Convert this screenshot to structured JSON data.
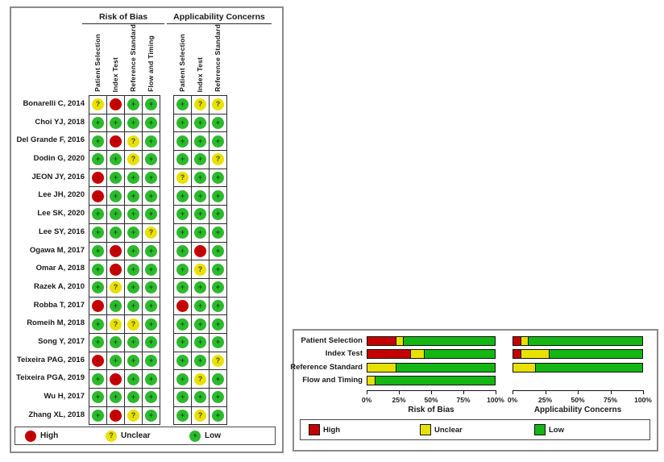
{
  "traffic_light_plot": {
    "group_headers": [
      {
        "label": "Risk of Bias"
      },
      {
        "label": "Applicability Concerns"
      }
    ],
    "rob_columns": [
      "Patient Selection",
      "Index Test",
      "Reference Standard",
      "Flow and Timing"
    ],
    "ac_columns": [
      "Patient Selection",
      "Index Test",
      "Reference Standard"
    ],
    "marks": {
      "high": {
        "label": "High",
        "symbol": "-",
        "fill": "#c40000",
        "symbol_color": "#7c0000"
      },
      "unclear": {
        "label": "Unclear",
        "symbol": "?",
        "fill": "#e8e100",
        "symbol_color": "#4d4d00"
      },
      "low": {
        "label": "Low",
        "symbol": "+",
        "fill": "#2db92d",
        "symbol_color": "#005c00"
      }
    },
    "legend": [
      {
        "key": "high",
        "label": "High"
      },
      {
        "key": "unclear",
        "label": "Unclear"
      },
      {
        "key": "low",
        "label": "Low"
      }
    ],
    "studies": [
      {
        "name": "Bonarelli C, 2014",
        "rob": [
          "unclear",
          "high",
          "low",
          "low"
        ],
        "ac": [
          "low",
          "unclear",
          "unclear"
        ]
      },
      {
        "name": "Choi YJ, 2018",
        "rob": [
          "low",
          "low",
          "low",
          "low"
        ],
        "ac": [
          "low",
          "low",
          "low"
        ]
      },
      {
        "name": "Del Grande F, 2016",
        "rob": [
          "low",
          "high",
          "unclear",
          "low"
        ],
        "ac": [
          "low",
          "low",
          "low"
        ]
      },
      {
        "name": "Dodin G, 2020",
        "rob": [
          "low",
          "low",
          "unclear",
          "low"
        ],
        "ac": [
          "low",
          "low",
          "unclear"
        ]
      },
      {
        "name": "JEON JY, 2016",
        "rob": [
          "high",
          "low",
          "low",
          "low"
        ],
        "ac": [
          "unclear",
          "low",
          "low"
        ]
      },
      {
        "name": "Lee JH, 2020",
        "rob": [
          "high",
          "low",
          "low",
          "low"
        ],
        "ac": [
          "low",
          "low",
          "low"
        ]
      },
      {
        "name": "Lee SK, 2020",
        "rob": [
          "low",
          "low",
          "low",
          "low"
        ],
        "ac": [
          "low",
          "low",
          "low"
        ]
      },
      {
        "name": "Lee SY, 2016",
        "rob": [
          "low",
          "low",
          "low",
          "unclear"
        ],
        "ac": [
          "low",
          "low",
          "low"
        ]
      },
      {
        "name": "Ogawa M, 2017",
        "rob": [
          "low",
          "high",
          "low",
          "low"
        ],
        "ac": [
          "low",
          "high",
          "low"
        ]
      },
      {
        "name": "Omar A, 2018",
        "rob": [
          "low",
          "high",
          "low",
          "low"
        ],
        "ac": [
          "low",
          "unclear",
          "low"
        ]
      },
      {
        "name": "Razek A, 2010",
        "rob": [
          "low",
          "unclear",
          "low",
          "low"
        ],
        "ac": [
          "low",
          "low",
          "low"
        ]
      },
      {
        "name": "Robba T, 2017",
        "rob": [
          "high",
          "low",
          "low",
          "low"
        ],
        "ac": [
          "high",
          "low",
          "low"
        ]
      },
      {
        "name": "Romeih M, 2018",
        "rob": [
          "low",
          "unclear",
          "unclear",
          "low"
        ],
        "ac": [
          "low",
          "low",
          "low"
        ]
      },
      {
        "name": "Song Y, 2017",
        "rob": [
          "low",
          "low",
          "low",
          "low"
        ],
        "ac": [
          "low",
          "low",
          "low"
        ]
      },
      {
        "name": "Teixeira PAG, 2016",
        "rob": [
          "high",
          "low",
          "low",
          "low"
        ],
        "ac": [
          "low",
          "low",
          "unclear"
        ]
      },
      {
        "name": "Teixeira PGA, 2019",
        "rob": [
          "low",
          "high",
          "low",
          "low"
        ],
        "ac": [
          "low",
          "unclear",
          "low"
        ]
      },
      {
        "name": "Wu H, 2017",
        "rob": [
          "low",
          "low",
          "low",
          "low"
        ],
        "ac": [
          "low",
          "low",
          "low"
        ]
      },
      {
        "name": "Zhang XL, 2018",
        "rob": [
          "low",
          "high",
          "unclear",
          "low"
        ],
        "ac": [
          "low",
          "unclear",
          "low"
        ]
      }
    ]
  },
  "chart_data": {
    "type": "bar",
    "orientation": "horizontal",
    "stacked": true,
    "categories": [
      "Patient Selection",
      "Index Test",
      "Reference Standard",
      "Flow and Timing"
    ],
    "x_ticks": [
      "0%",
      "25%",
      "50%",
      "75%",
      "100%"
    ],
    "xlim": [
      0,
      100
    ],
    "panels": [
      {
        "title": "Risk of Bias",
        "series": [
          {
            "name": "High",
            "values": [
              22.2,
              33.3,
              0.0,
              0.0
            ]
          },
          {
            "name": "Unclear",
            "values": [
              5.6,
              11.1,
              22.2,
              5.6
            ]
          },
          {
            "name": "Low",
            "values": [
              72.2,
              55.6,
              77.8,
              94.4
            ]
          }
        ]
      },
      {
        "title": "Applicability Concerns",
        "series": [
          {
            "name": "High",
            "values": [
              5.6,
              5.6,
              0.0,
              null
            ]
          },
          {
            "name": "Unclear",
            "values": [
              5.6,
              22.2,
              16.7,
              null
            ]
          },
          {
            "name": "Low",
            "values": [
              88.9,
              72.2,
              83.3,
              null
            ]
          }
        ]
      }
    ],
    "legend": [
      {
        "label": "High",
        "color": "#c40000"
      },
      {
        "label": "Unclear",
        "color": "#e8e100"
      },
      {
        "label": "Low",
        "color": "#13b613"
      }
    ]
  }
}
